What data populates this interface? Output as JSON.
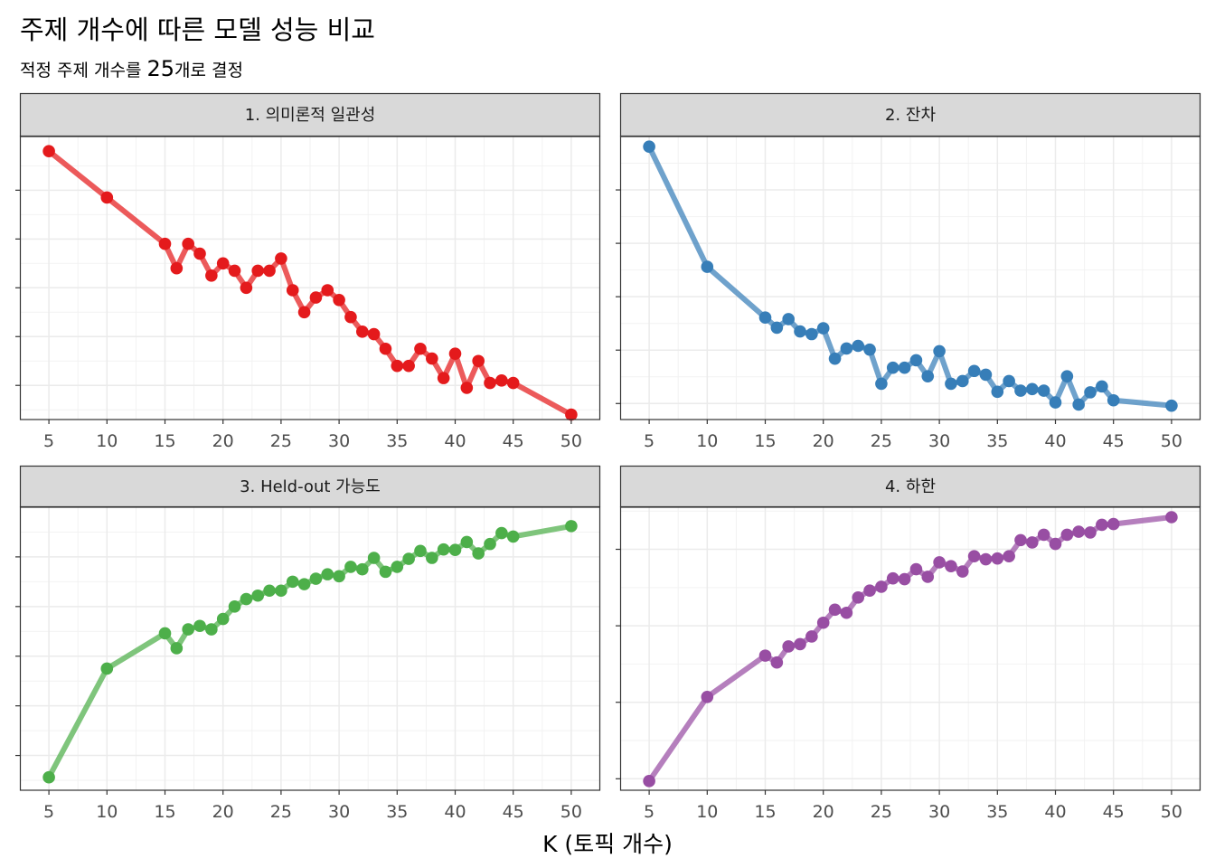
{
  "title": "주제 개수에 따른 모델 성능 비교",
  "subtitle": {
    "prefix": "적정 주제 개수를 ",
    "highlight": "25",
    "suffix": "개로 결정"
  },
  "x_axis_label": "K (토픽 개수)",
  "chart_data": [
    {
      "type": "line",
      "panel": "1. 의미론적 일관성",
      "color": "#e41a1c",
      "x": [
        5,
        10,
        15,
        16,
        17,
        18,
        19,
        20,
        21,
        22,
        23,
        24,
        25,
        26,
        27,
        28,
        29,
        30,
        31,
        32,
        33,
        34,
        35,
        36,
        37,
        38,
        39,
        40,
        41,
        42,
        43,
        44,
        45,
        50
      ],
      "values": [
        0.96,
        0.77,
        0.58,
        0.48,
        0.58,
        0.54,
        0.45,
        0.5,
        0.47,
        0.4,
        0.47,
        0.47,
        0.52,
        0.39,
        0.3,
        0.36,
        0.39,
        0.35,
        0.28,
        0.22,
        0.21,
        0.15,
        0.08,
        0.08,
        0.15,
        0.11,
        0.03,
        0.13,
        -0.01,
        0.1,
        0.01,
        0.02,
        0.01,
        -0.12
      ],
      "xlim": [
        2.5,
        52.5
      ],
      "ylim": [
        -0.14,
        1.02
      ],
      "xticks": [
        5,
        10,
        15,
        20,
        25,
        30,
        35,
        40,
        45,
        50
      ],
      "yticks": [
        0.0,
        0.2,
        0.4,
        0.6,
        0.8
      ],
      "ytick_labels": [
        "",
        "",
        "",
        "",
        ""
      ]
    },
    {
      "type": "line",
      "panel": "2. 잔차",
      "color": "#377eb8",
      "x": [
        5,
        10,
        15,
        16,
        17,
        18,
        19,
        20,
        21,
        22,
        23,
        24,
        25,
        26,
        27,
        28,
        29,
        30,
        31,
        32,
        33,
        34,
        35,
        36,
        37,
        38,
        39,
        40,
        41,
        42,
        43,
        44,
        45,
        50
      ],
      "values": [
        4.81,
        2.56,
        1.61,
        1.42,
        1.58,
        1.35,
        1.3,
        1.41,
        0.84,
        1.03,
        1.08,
        1.01,
        0.37,
        0.67,
        0.67,
        0.81,
        0.51,
        0.98,
        0.37,
        0.42,
        0.61,
        0.54,
        0.22,
        0.42,
        0.24,
        0.27,
        0.24,
        0.02,
        0.51,
        -0.02,
        0.21,
        0.32,
        0.06,
        -0.04
      ],
      "xlim": [
        2.5,
        52.5
      ],
      "ylim": [
        -0.3,
        5.0
      ],
      "xticks": [
        5,
        10,
        15,
        20,
        25,
        30,
        35,
        40,
        45,
        50
      ],
      "yticks": [
        0,
        1,
        2,
        3,
        4
      ],
      "ytick_labels": [
        "",
        "",
        "",
        "",
        ""
      ]
    },
    {
      "type": "line",
      "panel": "3. Held-out 가능도",
      "color": "#4daf4a",
      "x": [
        5,
        10,
        15,
        16,
        17,
        18,
        19,
        20,
        21,
        22,
        23,
        24,
        25,
        26,
        27,
        28,
        29,
        30,
        31,
        32,
        33,
        34,
        35,
        36,
        37,
        38,
        39,
        40,
        41,
        42,
        43,
        44,
        45,
        50
      ],
      "values": [
        0.56,
        2.75,
        3.46,
        3.16,
        3.54,
        3.61,
        3.54,
        3.75,
        4.0,
        4.15,
        4.22,
        4.32,
        4.32,
        4.5,
        4.45,
        4.56,
        4.65,
        4.61,
        4.8,
        4.75,
        4.98,
        4.7,
        4.8,
        4.96,
        5.12,
        4.98,
        5.15,
        5.14,
        5.3,
        5.07,
        5.26,
        5.48,
        5.41,
        5.62
      ],
      "xlim": [
        2.5,
        52.5
      ],
      "ylim": [
        0.3,
        6.0
      ],
      "xticks": [
        5,
        10,
        15,
        20,
        25,
        30,
        35,
        40,
        45,
        50
      ],
      "yticks": [
        1,
        2,
        3,
        4,
        5
      ],
      "ytick_labels": [
        "",
        "",
        "",
        "",
        ""
      ]
    },
    {
      "type": "line",
      "panel": "4. 하한",
      "color": "#984ea3",
      "x": [
        5,
        10,
        15,
        16,
        17,
        18,
        19,
        20,
        21,
        22,
        23,
        24,
        25,
        26,
        27,
        28,
        29,
        30,
        31,
        32,
        33,
        34,
        35,
        36,
        37,
        38,
        39,
        40,
        41,
        42,
        43,
        44,
        45,
        50
      ],
      "values": [
        -0.03,
        1.07,
        1.61,
        1.52,
        1.73,
        1.76,
        1.86,
        2.04,
        2.21,
        2.17,
        2.37,
        2.46,
        2.51,
        2.62,
        2.61,
        2.74,
        2.64,
        2.83,
        2.78,
        2.71,
        2.91,
        2.87,
        2.88,
        2.91,
        3.12,
        3.09,
        3.19,
        3.07,
        3.19,
        3.23,
        3.22,
        3.32,
        3.33,
        3.42
      ],
      "xlim": [
        2.5,
        52.5
      ],
      "ylim": [
        -0.15,
        3.55
      ],
      "xticks": [
        5,
        10,
        15,
        20,
        25,
        30,
        35,
        40,
        45,
        50
      ],
      "yticks": [
        0,
        1,
        2,
        3
      ],
      "ytick_labels": [
        "",
        "",
        "",
        ""
      ]
    }
  ]
}
